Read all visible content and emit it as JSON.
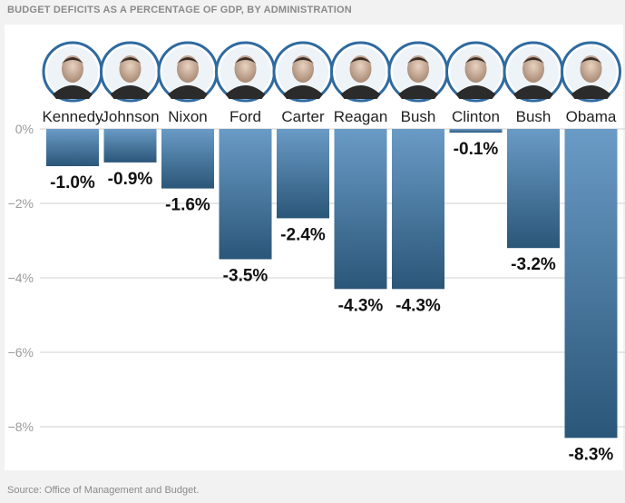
{
  "title": "BUDGET DEFICITS AS A PERCENTAGE OF GDP, BY ADMINISTRATION",
  "source": "Source: Office of Management and Budget.",
  "colors": {
    "bar_top": "#6a9bc6",
    "bar_bottom": "#2a5678",
    "grid": "#cfcfcf",
    "portrait_ring": "#2f6aa0"
  },
  "chart_data": {
    "type": "bar",
    "categories": [
      "Kennedy",
      "Johnson",
      "Nixon",
      "Ford",
      "Carter",
      "Reagan",
      "Bush",
      "Clinton",
      "Bush",
      "Obama"
    ],
    "values": [
      -1.0,
      -0.9,
      -1.6,
      -3.5,
      -2.4,
      -4.3,
      -4.3,
      -0.1,
      -3.2,
      -8.3
    ],
    "value_labels": [
      "-1.0%",
      "-0.9%",
      "-1.6%",
      "-3.5%",
      "-2.4%",
      "-4.3%",
      "-4.3%",
      "-0.1%",
      "-3.2%",
      "-8.3%"
    ],
    "yticks": [
      0,
      -2,
      -4,
      -6,
      -8
    ],
    "ytick_labels": [
      "0%",
      "−2%",
      "−4%",
      "−6%",
      "−8%"
    ],
    "ylim": [
      -8.4,
      0
    ],
    "grid": true,
    "legend": "none",
    "portrait_icons": [
      "president-portrait-icon"
    ]
  }
}
